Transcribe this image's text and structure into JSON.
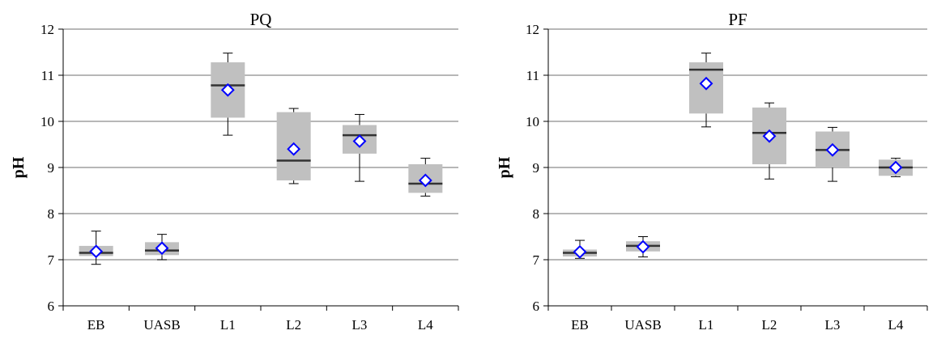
{
  "chart_data": [
    {
      "type": "box",
      "title": "PQ",
      "ylabel": "pH",
      "xlabel": "",
      "ylim": [
        6,
        12
      ],
      "yticks": [
        "6",
        "7",
        "8",
        "9",
        "10",
        "11",
        "12"
      ],
      "grid": true,
      "categories": [
        "EB",
        "UASB",
        "L1",
        "L2",
        "L3",
        "L4"
      ],
      "box_color": "#c0c0c0",
      "mean_marker_color": "#0000ff",
      "boxes": [
        {
          "min": 6.9,
          "q1": 7.08,
          "median": 7.15,
          "q3": 7.3,
          "max": 7.62,
          "mean": 7.18
        },
        {
          "min": 7.0,
          "q1": 7.1,
          "median": 7.2,
          "q3": 7.38,
          "max": 7.55,
          "mean": 7.25
        },
        {
          "min": 9.7,
          "q1": 10.08,
          "median": 10.78,
          "q3": 11.28,
          "max": 11.48,
          "mean": 10.68
        },
        {
          "min": 8.65,
          "q1": 8.72,
          "median": 9.15,
          "q3": 10.2,
          "max": 10.28,
          "mean": 9.4
        },
        {
          "min": 8.7,
          "q1": 9.3,
          "median": 9.7,
          "q3": 9.92,
          "max": 10.15,
          "mean": 9.57
        },
        {
          "min": 8.38,
          "q1": 8.45,
          "median": 8.65,
          "q3": 9.07,
          "max": 9.2,
          "mean": 8.72
        }
      ]
    },
    {
      "type": "box",
      "title": "PF",
      "ylabel": "pH",
      "xlabel": "",
      "ylim": [
        6,
        12
      ],
      "yticks": [
        "6",
        "7",
        "8",
        "9",
        "10",
        "11",
        "12"
      ],
      "grid": true,
      "categories": [
        "EB",
        "UASB",
        "L1",
        "L2",
        "L3",
        "L4"
      ],
      "box_color": "#c0c0c0",
      "mean_marker_color": "#0000ff",
      "boxes": [
        {
          "min": 7.03,
          "q1": 7.07,
          "median": 7.15,
          "q3": 7.22,
          "max": 7.42,
          "mean": 7.17
        },
        {
          "min": 7.06,
          "q1": 7.18,
          "median": 7.3,
          "q3": 7.4,
          "max": 7.5,
          "mean": 7.28
        },
        {
          "min": 9.88,
          "q1": 10.17,
          "median": 11.12,
          "q3": 11.28,
          "max": 11.48,
          "mean": 10.82
        },
        {
          "min": 8.75,
          "q1": 9.07,
          "median": 9.75,
          "q3": 10.3,
          "max": 10.4,
          "mean": 9.68
        },
        {
          "min": 8.7,
          "q1": 9.0,
          "median": 9.38,
          "q3": 9.78,
          "max": 9.87,
          "mean": 9.38
        },
        {
          "min": 8.8,
          "q1": 8.82,
          "median": 9.0,
          "q3": 9.17,
          "max": 9.2,
          "mean": 9.0
        }
      ]
    }
  ]
}
